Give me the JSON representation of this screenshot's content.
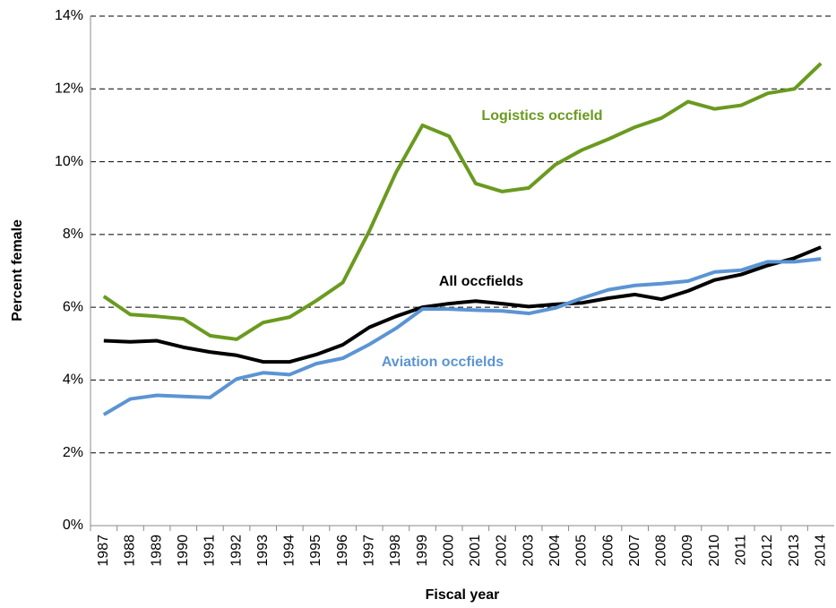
{
  "chart_data": {
    "type": "line",
    "y_label": "Percent female",
    "x_label": "Fiscal year",
    "categories": [
      "1987",
      "1988",
      "1989",
      "1990",
      "1991",
      "1992",
      "1993",
      "1994",
      "1995",
      "1996",
      "1997",
      "1998",
      "1999",
      "2000",
      "2001",
      "2002",
      "2003",
      "2004",
      "2005",
      "2006",
      "2007",
      "2008",
      "2009",
      "2010",
      "2011",
      "2012",
      "2013",
      "2014"
    ],
    "series": [
      {
        "name": "Logistics occfield",
        "color": "#6a9a1f",
        "values": [
          6.3,
          5.8,
          5.75,
          5.68,
          5.22,
          5.12,
          5.58,
          5.73,
          6.18,
          6.68,
          8.1,
          9.7,
          11.0,
          10.7,
          9.4,
          9.18,
          9.28,
          9.92,
          10.32,
          10.62,
          10.95,
          11.2,
          11.65,
          11.45,
          11.55,
          11.88,
          12.0,
          12.7
        ]
      },
      {
        "name": "All occfields",
        "color": "#000000",
        "values": [
          5.08,
          5.05,
          5.08,
          4.9,
          4.77,
          4.68,
          4.5,
          4.5,
          4.7,
          4.97,
          5.45,
          5.75,
          6.0,
          6.1,
          6.17,
          6.1,
          6.02,
          6.08,
          6.12,
          6.25,
          6.35,
          6.22,
          6.45,
          6.75,
          6.9,
          7.15,
          7.35,
          7.65
        ]
      },
      {
        "name": "Aviation occfields",
        "color": "#5b94d3",
        "values": [
          3.05,
          3.48,
          3.58,
          3.55,
          3.52,
          4.03,
          4.2,
          4.15,
          4.45,
          4.6,
          4.98,
          5.42,
          5.95,
          5.95,
          5.92,
          5.9,
          5.83,
          5.98,
          6.25,
          6.48,
          6.6,
          6.65,
          6.72,
          6.97,
          7.02,
          7.25,
          7.25,
          7.33
        ]
      }
    ],
    "ylim": [
      0,
      14
    ],
    "yticks": [
      {
        "value": 0,
        "label": "0%"
      },
      {
        "value": 2,
        "label": "2%"
      },
      {
        "value": 4,
        "label": "4%"
      },
      {
        "value": 6,
        "label": "6%"
      },
      {
        "value": 8,
        "label": "8%"
      },
      {
        "value": 10,
        "label": "10%"
      },
      {
        "value": 12,
        "label": "12%"
      },
      {
        "value": 14,
        "label": "14%"
      }
    ],
    "grid": true
  }
}
